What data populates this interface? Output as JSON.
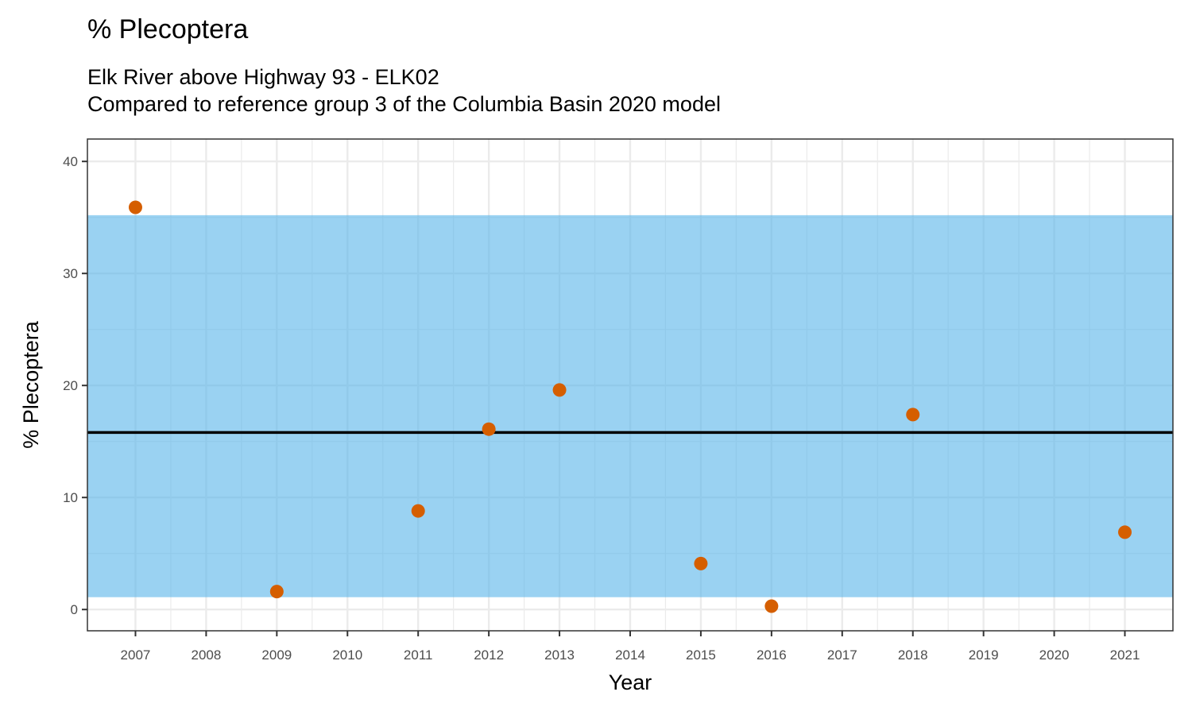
{
  "chart_data": {
    "type": "scatter",
    "title": "% Plecoptera",
    "subtitle_lines": [
      "Elk River above Highway 93 - ELK02",
      "Compared to reference group 3 of the Columbia Basin 2020 model"
    ],
    "xlabel": "Year",
    "ylabel": "% Plecoptera",
    "x_ticks": [
      "2007",
      "2008",
      "2009",
      "2010",
      "2011",
      "2012",
      "2013",
      "2014",
      "2015",
      "2016",
      "2017",
      "2018",
      "2019",
      "2020",
      "2021"
    ],
    "y_ticks": [
      "0",
      "10",
      "20",
      "30",
      "40"
    ],
    "xlim": [
      2006.32,
      2021.68
    ],
    "ylim": [
      -1.9,
      42
    ],
    "grid": true,
    "reference_band": {
      "lower": 1.1,
      "upper": 35.2,
      "color": "#56B4E9",
      "opacity": 0.6
    },
    "reference_line": {
      "value": 15.8,
      "color": "#000000"
    },
    "points": [
      {
        "x": 2007,
        "y": 35.9
      },
      {
        "x": 2009,
        "y": 1.6
      },
      {
        "x": 2011,
        "y": 8.8
      },
      {
        "x": 2012,
        "y": 16.1
      },
      {
        "x": 2013,
        "y": 19.6
      },
      {
        "x": 2015,
        "y": 4.1
      },
      {
        "x": 2016,
        "y": 0.3
      },
      {
        "x": 2018,
        "y": 17.4
      },
      {
        "x": 2021,
        "y": 6.9
      }
    ],
    "point_color": "#D55E00"
  }
}
